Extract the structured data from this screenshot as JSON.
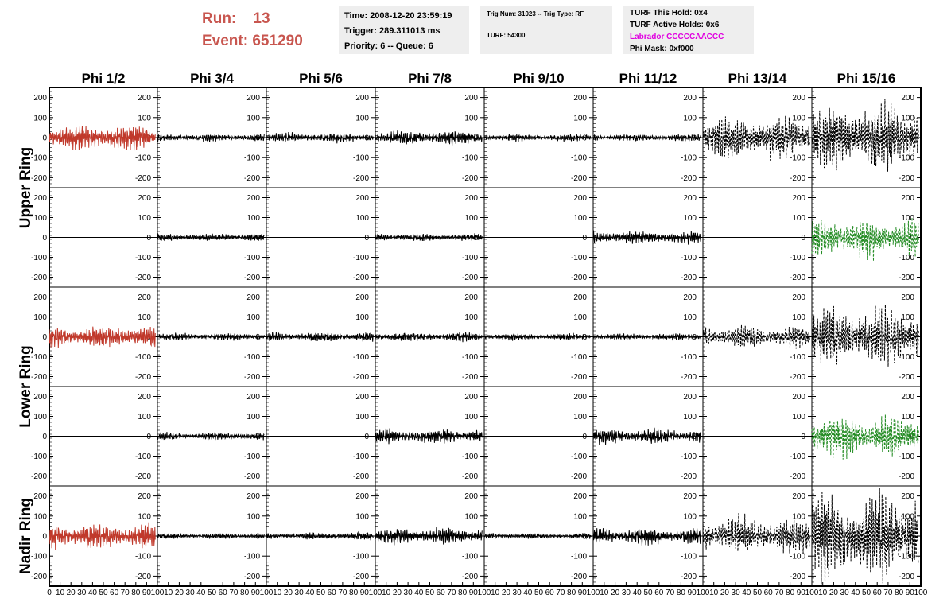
{
  "header": {
    "run_label": "Run:",
    "run_value": "13",
    "event_label": "Event:",
    "event_value": "651290",
    "run_color": "#c8564f"
  },
  "info_box_1": {
    "time": "Time: 2008-12-20 23:59:19",
    "trigger": "Trigger: 289.311013 ms",
    "priority": "Priority: 6 -- Queue: 6"
  },
  "info_box_2": {
    "trig": "Trig Num: 31023 -- Trig Type: RF",
    "turf": "TURF: 54300"
  },
  "info_box_3": {
    "this_hold": "TURF This Hold: 0x4",
    "active_holds": "TURF Active Holds: 0x6",
    "labrador": "Labrador CCCCCAACCC",
    "phi_mask": "Phi Mask: 0xf000",
    "labrador_color": "#e000e0"
  },
  "chart_data": {
    "type": "line",
    "columns": [
      "Phi 1/2",
      "Phi 3/4",
      "Phi 5/6",
      "Phi 7/8",
      "Phi 9/10",
      "Phi 11/12",
      "Phi 13/14",
      "Phi 15/16"
    ],
    "rows": [
      "Upper Ring",
      "Lower Ring",
      "Nadir Ring"
    ],
    "ylim": [
      -250,
      250
    ],
    "yticks": [
      -200,
      -100,
      0,
      100,
      200
    ],
    "xlim": [
      0,
      100
    ],
    "xticks": [
      0,
      10,
      20,
      30,
      40,
      50,
      60,
      70,
      80,
      90,
      100
    ],
    "colors": {
      "trigger": "#c0392b",
      "normal": "#000000",
      "masked": "#228B22"
    },
    "panels": [
      {
        "row": "Upper Ring",
        "pol": "V",
        "col": "Phi 1/2",
        "amplitude": 70,
        "color": "trigger",
        "style": "solid"
      },
      {
        "row": "Upper Ring",
        "pol": "V",
        "col": "Phi 3/4",
        "amplitude": 20,
        "color": "normal",
        "style": "solid"
      },
      {
        "row": "Upper Ring",
        "pol": "V",
        "col": "Phi 5/6",
        "amplitude": 25,
        "color": "normal",
        "style": "solid"
      },
      {
        "row": "Upper Ring",
        "pol": "V",
        "col": "Phi 7/8",
        "amplitude": 40,
        "color": "normal",
        "style": "solid"
      },
      {
        "row": "Upper Ring",
        "pol": "V",
        "col": "Phi 9/10",
        "amplitude": 20,
        "color": "normal",
        "style": "solid"
      },
      {
        "row": "Upper Ring",
        "pol": "V",
        "col": "Phi 11/12",
        "amplitude": 20,
        "color": "normal",
        "style": "solid"
      },
      {
        "row": "Upper Ring",
        "pol": "V",
        "col": "Phi 13/14",
        "amplitude": 120,
        "color": "normal",
        "style": "dashed"
      },
      {
        "row": "Upper Ring",
        "pol": "V",
        "col": "Phi 15/16",
        "amplitude": 190,
        "color": "normal",
        "style": "dashed"
      },
      {
        "row": "Upper Ring",
        "pol": "H",
        "col": "Phi 1/2",
        "amplitude": 0,
        "color": "normal",
        "style": "solid"
      },
      {
        "row": "Upper Ring",
        "pol": "H",
        "col": "Phi 3/4",
        "amplitude": 20,
        "color": "normal",
        "style": "solid"
      },
      {
        "row": "Upper Ring",
        "pol": "H",
        "col": "Phi 5/6",
        "amplitude": 0,
        "color": "normal",
        "style": "solid"
      },
      {
        "row": "Upper Ring",
        "pol": "H",
        "col": "Phi 7/8",
        "amplitude": 20,
        "color": "normal",
        "style": "solid"
      },
      {
        "row": "Upper Ring",
        "pol": "H",
        "col": "Phi 9/10",
        "amplitude": 0,
        "color": "normal",
        "style": "solid"
      },
      {
        "row": "Upper Ring",
        "pol": "H",
        "col": "Phi 11/12",
        "amplitude": 35,
        "color": "normal",
        "style": "solid"
      },
      {
        "row": "Upper Ring",
        "pol": "H",
        "col": "Phi 13/14",
        "amplitude": 0,
        "color": "normal",
        "style": "solid"
      },
      {
        "row": "Upper Ring",
        "pol": "H",
        "col": "Phi 15/16",
        "amplitude": 110,
        "color": "masked",
        "style": "dashed"
      },
      {
        "row": "Lower Ring",
        "pol": "V",
        "col": "Phi 1/2",
        "amplitude": 60,
        "color": "trigger",
        "style": "solid"
      },
      {
        "row": "Lower Ring",
        "pol": "V",
        "col": "Phi 3/4",
        "amplitude": 20,
        "color": "normal",
        "style": "solid"
      },
      {
        "row": "Lower Ring",
        "pol": "V",
        "col": "Phi 5/6",
        "amplitude": 25,
        "color": "normal",
        "style": "solid"
      },
      {
        "row": "Lower Ring",
        "pol": "V",
        "col": "Phi 7/8",
        "amplitude": 25,
        "color": "normal",
        "style": "solid"
      },
      {
        "row": "Lower Ring",
        "pol": "V",
        "col": "Phi 9/10",
        "amplitude": 18,
        "color": "normal",
        "style": "solid"
      },
      {
        "row": "Lower Ring",
        "pol": "V",
        "col": "Phi 11/12",
        "amplitude": 18,
        "color": "normal",
        "style": "solid"
      },
      {
        "row": "Lower Ring",
        "pol": "V",
        "col": "Phi 13/14",
        "amplitude": 60,
        "color": "normal",
        "style": "dashed"
      },
      {
        "row": "Lower Ring",
        "pol": "V",
        "col": "Phi 15/16",
        "amplitude": 160,
        "color": "normal",
        "style": "dashed"
      },
      {
        "row": "Lower Ring",
        "pol": "H",
        "col": "Phi 1/2",
        "amplitude": 0,
        "color": "normal",
        "style": "solid"
      },
      {
        "row": "Lower Ring",
        "pol": "H",
        "col": "Phi 3/4",
        "amplitude": 20,
        "color": "normal",
        "style": "solid"
      },
      {
        "row": "Lower Ring",
        "pol": "H",
        "col": "Phi 5/6",
        "amplitude": 0,
        "color": "normal",
        "style": "solid"
      },
      {
        "row": "Lower Ring",
        "pol": "H",
        "col": "Phi 7/8",
        "amplitude": 40,
        "color": "normal",
        "style": "solid"
      },
      {
        "row": "Lower Ring",
        "pol": "H",
        "col": "Phi 9/10",
        "amplitude": 0,
        "color": "normal",
        "style": "solid"
      },
      {
        "row": "Lower Ring",
        "pol": "H",
        "col": "Phi 11/12",
        "amplitude": 40,
        "color": "normal",
        "style": "solid"
      },
      {
        "row": "Lower Ring",
        "pol": "H",
        "col": "Phi 13/14",
        "amplitude": 0,
        "color": "normal",
        "style": "solid"
      },
      {
        "row": "Lower Ring",
        "pol": "H",
        "col": "Phi 15/16",
        "amplitude": 110,
        "color": "masked",
        "style": "dashed"
      },
      {
        "row": "Nadir Ring",
        "pol": "V",
        "col": "Phi 1/2",
        "amplitude": 70,
        "color": "trigger",
        "style": "solid"
      },
      {
        "row": "Nadir Ring",
        "pol": "V",
        "col": "Phi 3/4",
        "amplitude": 15,
        "color": "normal",
        "style": "solid"
      },
      {
        "row": "Nadir Ring",
        "pol": "V",
        "col": "Phi 5/6",
        "amplitude": 20,
        "color": "normal",
        "style": "solid"
      },
      {
        "row": "Nadir Ring",
        "pol": "V",
        "col": "Phi 7/8",
        "amplitude": 45,
        "color": "normal",
        "style": "solid"
      },
      {
        "row": "Nadir Ring",
        "pol": "V",
        "col": "Phi 9/10",
        "amplitude": 15,
        "color": "normal",
        "style": "solid"
      },
      {
        "row": "Nadir Ring",
        "pol": "V",
        "col": "Phi 11/12",
        "amplitude": 45,
        "color": "normal",
        "style": "solid"
      },
      {
        "row": "Nadir Ring",
        "pol": "V",
        "col": "Phi 13/14",
        "amplitude": 100,
        "color": "normal",
        "style": "dashed"
      },
      {
        "row": "Nadir Ring",
        "pol": "V",
        "col": "Phi 15/16",
        "amplitude": 240,
        "color": "normal",
        "style": "dashed"
      }
    ]
  }
}
